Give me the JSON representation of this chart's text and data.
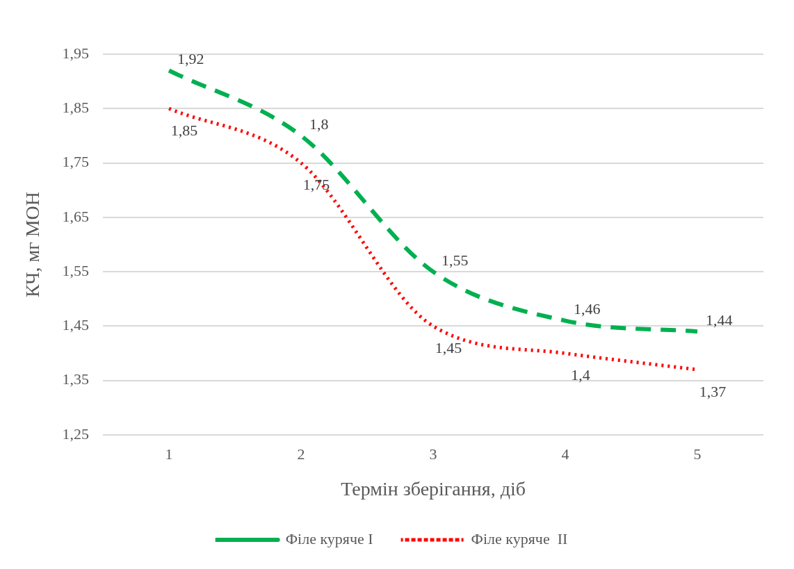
{
  "chart_data": {
    "type": "line",
    "categories": [
      "1",
      "2",
      "3",
      "4",
      "5"
    ],
    "series": [
      {
        "name": "Філе куряче I",
        "color": "#00b050",
        "line_style": "dashed",
        "values": [
          1.92,
          1.8,
          1.55,
          1.46,
          1.44
        ],
        "value_labels": [
          "1,92",
          "1,8",
          "1,55",
          "1,46",
          "1,44"
        ]
      },
      {
        "name": "Філе куряче  II",
        "color": "#ff0000",
        "line_style": "dotted",
        "values": [
          1.85,
          1.75,
          1.45,
          1.4,
          1.37
        ],
        "value_labels": [
          "1,85",
          "1,75",
          "1,45",
          "1,4",
          "1,37"
        ]
      }
    ],
    "ylim": [
      1.25,
      1.95
    ],
    "yticks": [
      {
        "value": 1.25,
        "label": "1,25"
      },
      {
        "value": 1.35,
        "label": "1,35"
      },
      {
        "value": 1.45,
        "label": "1,45"
      },
      {
        "value": 1.55,
        "label": "1,55"
      },
      {
        "value": 1.65,
        "label": "1,65"
      },
      {
        "value": 1.75,
        "label": "1,75"
      },
      {
        "value": 1.85,
        "label": "1,85"
      },
      {
        "value": 1.95,
        "label": "1,95"
      }
    ],
    "xlabel": "Термін зберігання, діб",
    "ylabel": "КЧ, мг МОН",
    "grid": "y",
    "legend": "bottom",
    "marker": "none"
  }
}
